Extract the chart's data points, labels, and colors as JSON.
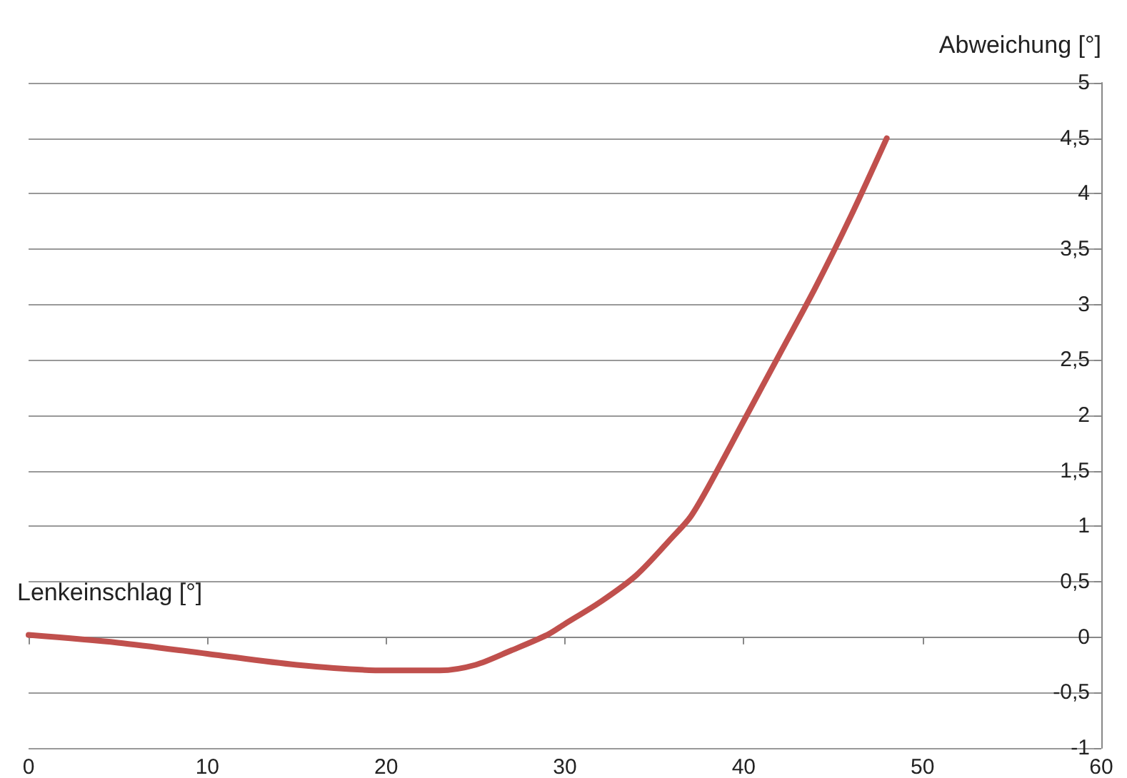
{
  "chart_data": {
    "type": "line",
    "xlabel": "Lenkeinschlag [°]",
    "ylabel": "Abweichung [°]",
    "xlim": [
      0,
      60
    ],
    "xticks": [
      0,
      10,
      20,
      30,
      40,
      50,
      60
    ],
    "ylim": [
      -1,
      5
    ],
    "yticks": [
      {
        "value": -1,
        "label": "-1"
      },
      {
        "value": -0.5,
        "label": "-0,5"
      },
      0,
      {
        "value": 0.5,
        "label": "0,5"
      },
      1,
      {
        "value": 1.5,
        "label": "1,5"
      },
      2,
      {
        "value": 2.5,
        "label": "2,5"
      },
      3,
      {
        "value": 3.5,
        "label": "3,5"
      },
      4,
      {
        "value": 4.5,
        "label": "4,5"
      },
      5
    ],
    "grid": "y",
    "marker": "none",
    "line_style": "solid",
    "series": [
      {
        "color": "#c0504d",
        "x": [
          0,
          5,
          10,
          15,
          20,
          23,
          25,
          27,
          29,
          30,
          32,
          34,
          36,
          37,
          38,
          40,
          42,
          44,
          46,
          48
        ],
        "values": [
          0.02,
          -0.05,
          -0.15,
          -0.25,
          -0.3,
          -0.3,
          -0.25,
          -0.12,
          0.02,
          0.12,
          0.32,
          0.56,
          0.9,
          1.08,
          1.35,
          1.95,
          2.55,
          3.15,
          3.8,
          4.5
        ]
      }
    ]
  }
}
